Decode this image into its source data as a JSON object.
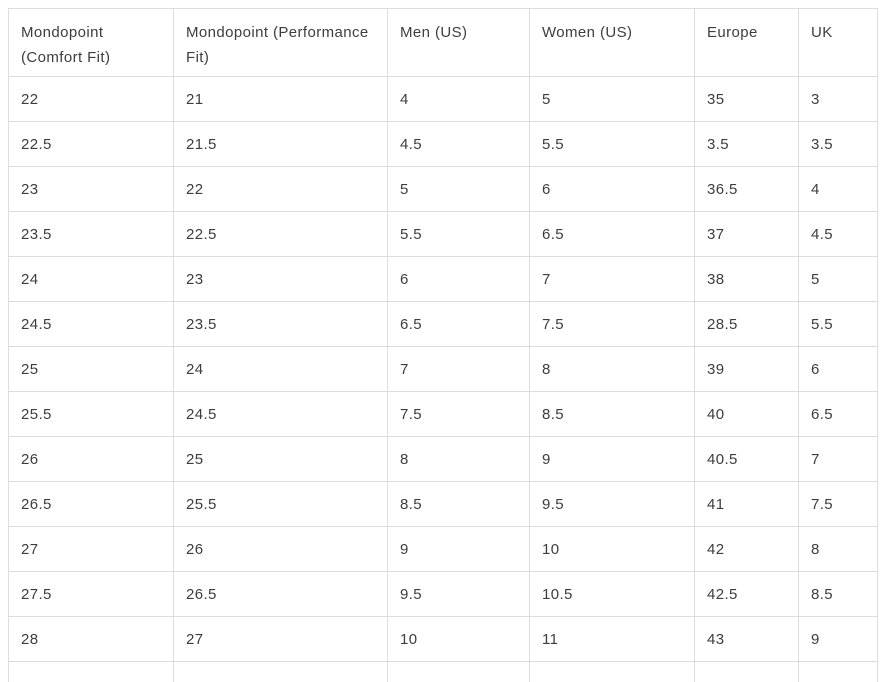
{
  "chart_data": {
    "type": "table",
    "columns": [
      "Mondopoint (Comfort Fit)",
      "Mondopoint (Performance Fit)",
      "Men (US)",
      "Women (US)",
      "Europe",
      "UK"
    ],
    "rows": [
      [
        22,
        21,
        4,
        5,
        35,
        3
      ],
      [
        22.5,
        21.5,
        4.5,
        5.5,
        3.5,
        3.5
      ],
      [
        23,
        22,
        5,
        6,
        36.5,
        4
      ],
      [
        23.5,
        22.5,
        5.5,
        6.5,
        37,
        4.5
      ],
      [
        24,
        23,
        6,
        7,
        38,
        5
      ],
      [
        24.5,
        23.5,
        6.5,
        7.5,
        28.5,
        5.5
      ],
      [
        25,
        24,
        7,
        8,
        39,
        6
      ],
      [
        25.5,
        24.5,
        7.5,
        8.5,
        40,
        6.5
      ],
      [
        26,
        25,
        8,
        9,
        40.5,
        7
      ],
      [
        26.5,
        25.5,
        8.5,
        9.5,
        41,
        7.5
      ],
      [
        27,
        26,
        9,
        10,
        42,
        8
      ],
      [
        27.5,
        26.5,
        9.5,
        10.5,
        42.5,
        8.5
      ],
      [
        28,
        27,
        10,
        11,
        43,
        9
      ]
    ],
    "layout": {
      "grid": "full",
      "header_rows": 1,
      "last_row_clipped": true
    }
  },
  "table": {
    "column_ids": [
      "mondopoint-comfort-fit",
      "mondopoint-performance-fit",
      "men-us",
      "women-us",
      "europe",
      "uk"
    ]
  },
  "colors": {
    "border": "#dcdcdc",
    "text": "#3d3d3d",
    "background": "#ffffff"
  }
}
